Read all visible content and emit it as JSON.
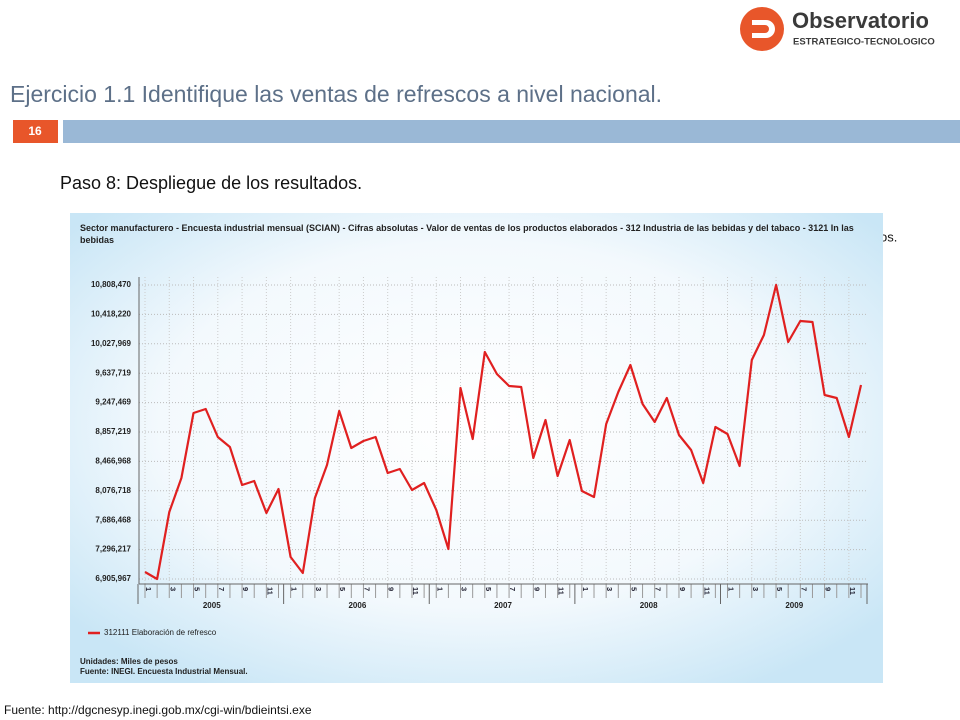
{
  "logo": {
    "name": "Observatorio",
    "subtitle": "ESTRATEGICO-TECNOLOGICO"
  },
  "slide_title": "Ejercicio 1.1 Identifique las ventas de refrescos a nivel nacional.",
  "slide_number": "16",
  "step": "Paso 8: Despliegue de los resultados.",
  "occluded_text": "os.",
  "source": "Fuente: http://dgcnesyp.inegi.gob.mx/cgi-win/bdieintsi.exe",
  "chart_data": {
    "type": "line",
    "title": "Sector manufacturero - Encuesta industrial mensual (SCIAN) - Cifras absolutas - Valor de ventas de los productos elaborados - 312 Industria de las bebidas y del tabaco - 3121 In las bebidas",
    "categories": [
      "1",
      null,
      "3",
      null,
      "5",
      null,
      "7",
      null,
      "9",
      null,
      "11",
      null,
      "1",
      null,
      "3",
      null,
      "5",
      null,
      "7",
      null,
      "9",
      null,
      "11",
      null,
      "1",
      null,
      "3",
      null,
      "5",
      null,
      "7",
      null,
      "9",
      null,
      "11",
      null,
      "1",
      null,
      "3",
      null,
      "5",
      null,
      "7",
      null,
      "9",
      null,
      "11",
      null,
      "1",
      null,
      "3",
      null,
      "5",
      null,
      "7",
      null,
      "9",
      null,
      "11",
      null
    ],
    "years": [
      "2005",
      "2006",
      "2007",
      "2008",
      "2009"
    ],
    "series": [
      {
        "name": "312111 Elaboración de refresco",
        "color": "#e02020",
        "values": [
          6999000,
          6906000,
          7795000,
          8247000,
          9109000,
          9162000,
          8791000,
          8658000,
          8154000,
          8207000,
          7782000,
          8101000,
          7198000,
          6986000,
          7981000,
          8419000,
          9136000,
          8645000,
          8738000,
          8791000,
          8313000,
          8366000,
          8087000,
          8180000,
          7822000,
          7304000,
          9441000,
          8764000,
          9919000,
          9627000,
          9468000,
          9454000,
          8512000,
          9016000,
          8273000,
          8751000,
          8074000,
          7994000,
          8963000,
          9388000,
          9746000,
          9229000,
          8990000,
          9308000,
          8817000,
          8618000,
          8180000,
          8923000,
          8831000,
          8406000,
          9813000,
          10145000,
          10808000,
          10052000,
          10330000,
          10317000,
          9348000,
          9308000,
          8791000,
          9481000
        ]
      }
    ],
    "ylim": [
      6905967,
      10808470
    ],
    "yticks": [
      {
        "value": 6905967,
        "label": "6,905,967"
      },
      {
        "value": 7296217,
        "label": "7,296,217"
      },
      {
        "value": 7686468,
        "label": "7,686,468"
      },
      {
        "value": 8076718,
        "label": "8,076,718"
      },
      {
        "value": 8466968,
        "label": "8,466,968"
      },
      {
        "value": 8857219,
        "label": "8,857,219"
      },
      {
        "value": 9247469,
        "label": "9,247,469"
      },
      {
        "value": 9637719,
        "label": "9,637,719"
      },
      {
        "value": 10027969,
        "label": "10,027,969"
      },
      {
        "value": 10418220,
        "label": "10,418,220"
      },
      {
        "value": 10808470,
        "label": "10,808,470"
      }
    ],
    "grid": true,
    "notes": [
      "Unidades: Miles de pesos",
      "Fuente: INEGI. Encuesta Industrial Mensual."
    ]
  }
}
